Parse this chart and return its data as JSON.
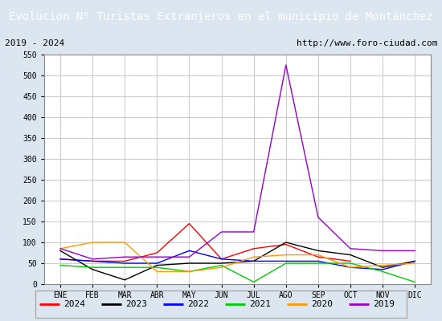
{
  "title": "Evolucion Nº Turistas Extranjeros en el municipio de Montánchez",
  "subtitle_left": "2019 - 2024",
  "subtitle_right": "http://www.foro-ciudad.com",
  "title_bg": "#4472c4",
  "title_color": "white",
  "plot_bg": "white",
  "outer_bg": "#dce6f1",
  "months": [
    "ENE",
    "FEB",
    "MAR",
    "ABR",
    "MAY",
    "JUN",
    "JUL",
    "AGO",
    "SEP",
    "OCT",
    "NOV",
    "DIC"
  ],
  "ylim": [
    0,
    550
  ],
  "yticks": [
    0,
    50,
    100,
    150,
    200,
    250,
    300,
    350,
    400,
    450,
    500,
    550
  ],
  "series": {
    "2024": {
      "color": "#ff0000",
      "data": [
        60,
        55,
        55,
        75,
        145,
        60,
        85,
        95,
        65,
        55,
        null,
        null
      ]
    },
    "2023": {
      "color": "#000000",
      "data": [
        80,
        35,
        10,
        45,
        50,
        50,
        55,
        100,
        80,
        70,
        40,
        55
      ]
    },
    "2022": {
      "color": "#0000ff",
      "data": [
        60,
        55,
        50,
        50,
        80,
        60,
        55,
        55,
        55,
        40,
        35,
        55
      ]
    },
    "2021": {
      "color": "#00cc00",
      "data": [
        45,
        40,
        40,
        40,
        30,
        45,
        5,
        50,
        50,
        50,
        30,
        5
      ]
    },
    "2020": {
      "color": "#ff9900",
      "data": [
        85,
        100,
        100,
        30,
        30,
        40,
        65,
        70,
        70,
        40,
        45,
        50
      ]
    },
    "2019": {
      "color": "#9900cc",
      "data": [
        85,
        60,
        65,
        65,
        65,
        125,
        125,
        525,
        160,
        85,
        80,
        80
      ]
    }
  },
  "legend_order": [
    "2024",
    "2023",
    "2022",
    "2021",
    "2020",
    "2019"
  ],
  "grid_color": "#cccccc",
  "grid_linewidth": 0.8,
  "title_fontsize": 10,
  "tick_fontsize": 7,
  "legend_fontsize": 8
}
